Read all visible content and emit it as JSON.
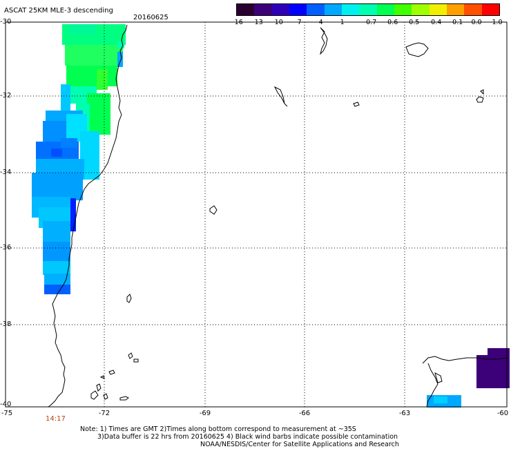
{
  "header": {
    "title": "ASCAT 25KM MLE-3 descending",
    "date": "20160625"
  },
  "colorbar": {
    "colors": [
      "#2a0030",
      "#3c0078",
      "#3000b8",
      "#0000ff",
      "#0060ff",
      "#00a8ff",
      "#00f0f0",
      "#00ffb0",
      "#00ff50",
      "#40ff00",
      "#a0ff00",
      "#f0f000",
      "#ffa000",
      "#ff5000",
      "#ff0000"
    ],
    "labels": [
      "-16",
      "-13",
      "-10",
      "-7",
      "-4",
      "-1",
      "-0.7",
      "-0.6",
      "-0.5",
      "-0.4",
      "-0.1",
      "0.0",
      "1.0"
    ]
  },
  "axes": {
    "lat_ticks": [
      "-30",
      "-32",
      "-34",
      "-36",
      "-38",
      "-40"
    ],
    "lon_ticks": [
      "-75",
      "-72",
      "-69",
      "-66",
      "-63",
      "-60"
    ]
  },
  "swath_time": "14:17",
  "notes": [
    "Note: 1) Times are GMT 2)Times along bottom correspond to measurement at ~35S",
    "3)Data buffer is 22 hrs from 20160625 4) Black wind barbs indicate possible contamination",
    "NOAA/NESDIS/Center for Satellite Applications and Research"
  ]
}
